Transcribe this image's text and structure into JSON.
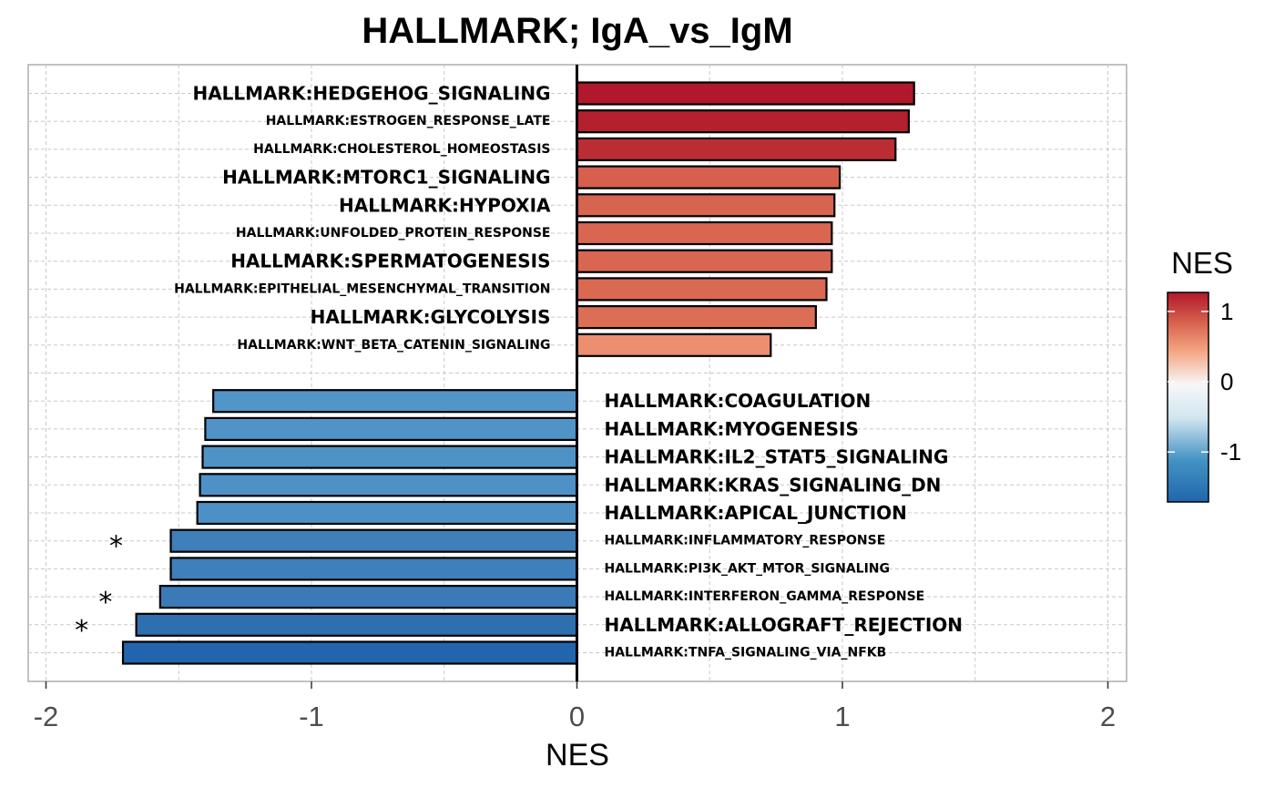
{
  "chart_data": {
    "type": "bar",
    "orientation": "horizontal",
    "title": "HALLMARK; IgA_vs_IgM",
    "xlabel": "NES",
    "ylabel": "",
    "xlim": [
      -2,
      2
    ],
    "xticks": [
      -2,
      -1,
      0,
      1,
      2
    ],
    "grid": true,
    "legend": {
      "title": "NES",
      "placement": "right",
      "type": "colorbar",
      "ticks": [
        1,
        0,
        -1
      ],
      "low_color": "#2166ac",
      "mid_color": "#f7f7f7",
      "high_color": "#b2182b"
    },
    "significance_marker": "*",
    "bars": [
      {
        "label": "HALLMARK:HEDGEHOG_SIGNALING",
        "value": 1.27,
        "color": "#b2182b",
        "significant": false,
        "large_label": true
      },
      {
        "label": "HALLMARK:ESTROGEN_RESPONSE_LATE",
        "value": 1.25,
        "color": "#b5202e",
        "significant": false,
        "large_label": false
      },
      {
        "label": "HALLMARK:CHOLESTEROL_HOMEOSTASIS",
        "value": 1.2,
        "color": "#bc2c33",
        "significant": false,
        "large_label": false
      },
      {
        "label": "HALLMARK:MTORC1_SIGNALING",
        "value": 0.99,
        "color": "#d6604d",
        "significant": false,
        "large_label": true
      },
      {
        "label": "HALLMARK:HYPOXIA",
        "value": 0.97,
        "color": "#d8644f",
        "significant": false,
        "large_label": true
      },
      {
        "label": "HALLMARK:UNFOLDED_PROTEIN_RESPONSE",
        "value": 0.96,
        "color": "#d96650",
        "significant": false,
        "large_label": false
      },
      {
        "label": "HALLMARK:SPERMATOGENESIS",
        "value": 0.96,
        "color": "#d96650",
        "significant": false,
        "large_label": true
      },
      {
        "label": "HALLMARK:EPITHELIAL_MESENCHYMAL_TRANSITION",
        "value": 0.94,
        "color": "#da6952",
        "significant": false,
        "large_label": false
      },
      {
        "label": "HALLMARK:GLYCOLYSIS",
        "value": 0.9,
        "color": "#dc6e55",
        "significant": false,
        "large_label": true
      },
      {
        "label": "HALLMARK:WNT_BETA_CATENIN_SIGNALING",
        "value": 0.73,
        "color": "#ec8e70",
        "significant": false,
        "large_label": false
      },
      {
        "label": "HALLMARK:COAGULATION",
        "value": -1.37,
        "color": "#5295c8",
        "significant": false,
        "large_label": true
      },
      {
        "label": "HALLMARK:MYOGENESIS",
        "value": -1.4,
        "color": "#5093c7",
        "significant": false,
        "large_label": true
      },
      {
        "label": "HALLMARK:IL2_STAT5_SIGNALING",
        "value": -1.41,
        "color": "#4f92c6",
        "significant": false,
        "large_label": true
      },
      {
        "label": "HALLMARK:KRAS_SIGNALING_DN",
        "value": -1.42,
        "color": "#4e91c6",
        "significant": false,
        "large_label": true
      },
      {
        "label": "HALLMARK:APICAL_JUNCTION",
        "value": -1.43,
        "color": "#4d90c5",
        "significant": false,
        "large_label": true
      },
      {
        "label": "HALLMARK:INFLAMMATORY_RESPONSE",
        "value": -1.53,
        "color": "#3f7fba",
        "significant": true,
        "large_label": false
      },
      {
        "label": "HALLMARK:PI3K_AKT_MTOR_SIGNALING",
        "value": -1.53,
        "color": "#3f7fba",
        "significant": false,
        "large_label": false
      },
      {
        "label": "HALLMARK:INTERFERON_GAMMA_RESPONSE",
        "value": -1.57,
        "color": "#3a7ab7",
        "significant": true,
        "large_label": false
      },
      {
        "label": "HALLMARK:ALLOGRAFT_REJECTION",
        "value": -1.66,
        "color": "#2e6fb0",
        "significant": true,
        "large_label": true
      },
      {
        "label": "HALLMARK:TNFA_SIGNALING_VIA_NFKB",
        "value": -1.71,
        "color": "#2166ac",
        "significant": false,
        "large_label": false
      }
    ]
  }
}
